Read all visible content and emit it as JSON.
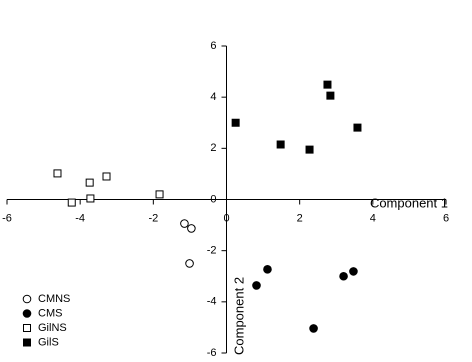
{
  "chart_data": {
    "type": "scatter",
    "xlabel": "Component 1",
    "ylabel": "Component 2",
    "xlim": [
      -6,
      6
    ],
    "ylim": [
      -6,
      6
    ],
    "xticks": [
      -6,
      -4,
      -2,
      0,
      2,
      4,
      6
    ],
    "yticks": [
      -6,
      -4,
      -2,
      0,
      2,
      4,
      6
    ],
    "legend": "lower left",
    "series": [
      {
        "name": "CMNS",
        "color": "#000000",
        "marker": "circle",
        "filled": false,
        "x": [
          -1.15,
          -0.96,
          -1.01
        ],
        "values": [
          -0.94,
          -1.13,
          -2.5
        ]
      },
      {
        "name": "CMS",
        "color": "#000000",
        "marker": "circle",
        "filled": true,
        "x": [
          0.82,
          1.12,
          3.2,
          3.47,
          2.38
        ],
        "values": [
          -3.36,
          -2.73,
          -3.0,
          -2.81,
          -5.04
        ]
      },
      {
        "name": "GilNS",
        "color": "#000000",
        "marker": "square",
        "filled": false,
        "x": [
          -4.62,
          -4.23,
          -3.74,
          -3.72,
          -3.28,
          -1.83
        ],
        "values": [
          1.02,
          -0.12,
          0.66,
          0.04,
          0.9,
          0.2
        ]
      },
      {
        "name": "GilS",
        "color": "#000000",
        "marker": "square",
        "filled": true,
        "x": [
          0.25,
          1.48,
          2.27,
          2.76,
          2.84,
          3.58
        ],
        "values": [
          3.0,
          2.15,
          1.95,
          4.49,
          4.06,
          2.81
        ]
      }
    ]
  }
}
